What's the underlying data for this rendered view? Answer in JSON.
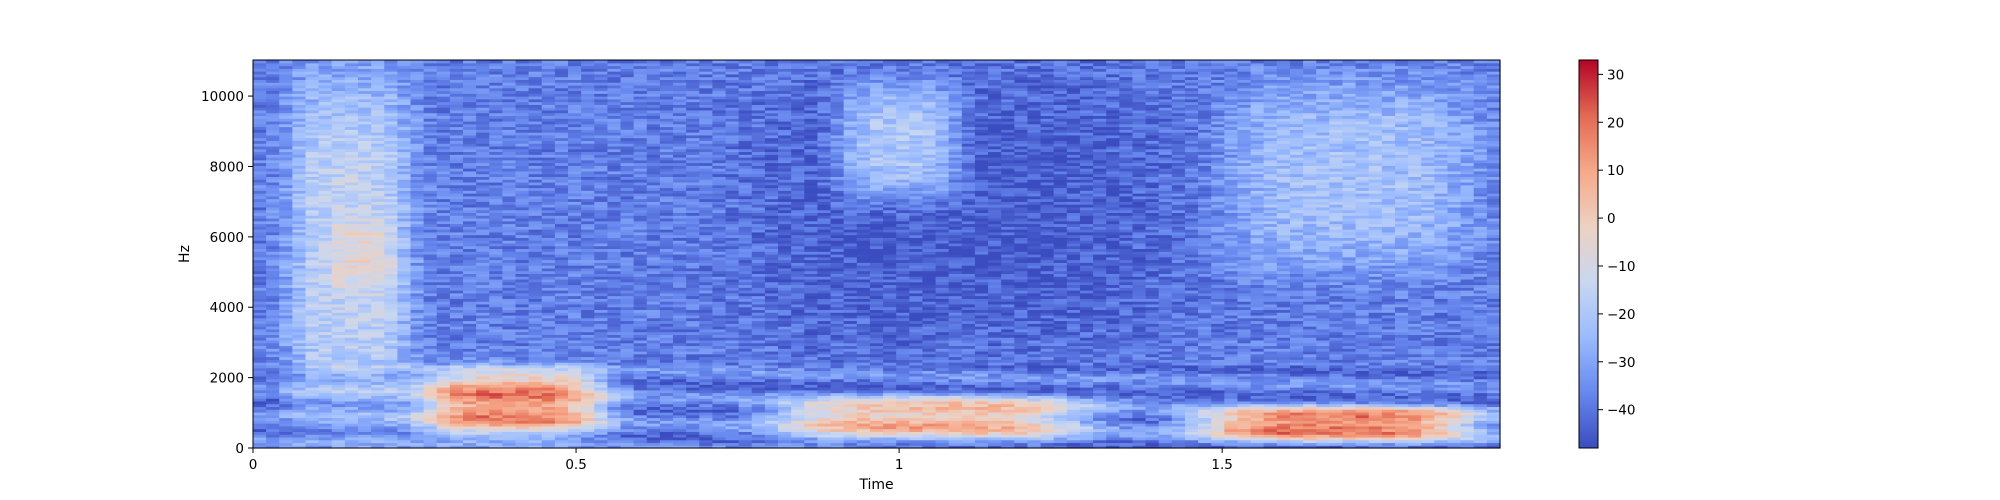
{
  "chart_data": {
    "type": "heatmap",
    "title": "",
    "xlabel": "Time",
    "ylabel": "Hz",
    "xlim": [
      0,
      1.93
    ],
    "ylim": [
      0,
      11025
    ],
    "x_ticks": [
      0,
      0.5,
      1,
      1.5
    ],
    "x_tick_labels": [
      "0",
      "0.5",
      "1",
      "1.5"
    ],
    "y_ticks": [
      0,
      2000,
      4000,
      6000,
      8000,
      10000
    ],
    "y_tick_labels": [
      "0",
      "2000",
      "4000",
      "6000",
      "8000",
      "10000"
    ],
    "colorbar": {
      "colormap": "coolwarm",
      "range": [
        -48,
        33
      ],
      "ticks": [
        -40,
        -30,
        -20,
        -10,
        0,
        10,
        20,
        30
      ],
      "tick_labels": [
        "−40",
        "−30",
        "−20",
        "−10",
        "0",
        "10",
        "20",
        "30"
      ]
    },
    "colormap_stops": [
      "#3b4cc0",
      "#6788ee",
      "#9abbff",
      "#c9d7f0",
      "#edd1c2",
      "#f7a889",
      "#e26952",
      "#b40426"
    ],
    "regions_db": [
      {
        "label": "low-energy floor (high freq, mid-time)",
        "t": [
          0.75,
          1.45
        ],
        "f": [
          2500,
          11025
        ],
        "db": -45
      },
      {
        "label": "early broadband burst",
        "t": [
          0.05,
          0.25
        ],
        "f": [
          500,
          11000
        ],
        "db": -15
      },
      {
        "label": "early burst peak",
        "t": [
          0.12,
          0.22
        ],
        "f": [
          4500,
          6500
        ],
        "db": -5
      },
      {
        "label": "harmonics 0.25-0.55s",
        "t": [
          0.25,
          0.55
        ],
        "f": [
          300,
          2300
        ],
        "db": 15
      },
      {
        "label": "harmonics 0.8-1.3s",
        "t": [
          0.8,
          1.3
        ],
        "f": [
          200,
          1500
        ],
        "db": 5
      },
      {
        "label": "harmonics 1.45-1.9s",
        "t": [
          1.45,
          1.9
        ],
        "f": [
          200,
          1200
        ],
        "db": 20
      },
      {
        "label": "upper band 0.9-1.1s",
        "t": [
          0.9,
          1.1
        ],
        "f": [
          7000,
          10500
        ],
        "db": -20
      },
      {
        "label": "upper band 1.5-1.9s",
        "t": [
          1.5,
          1.9
        ],
        "f": [
          5000,
          10500
        ],
        "db": -22
      }
    ]
  }
}
